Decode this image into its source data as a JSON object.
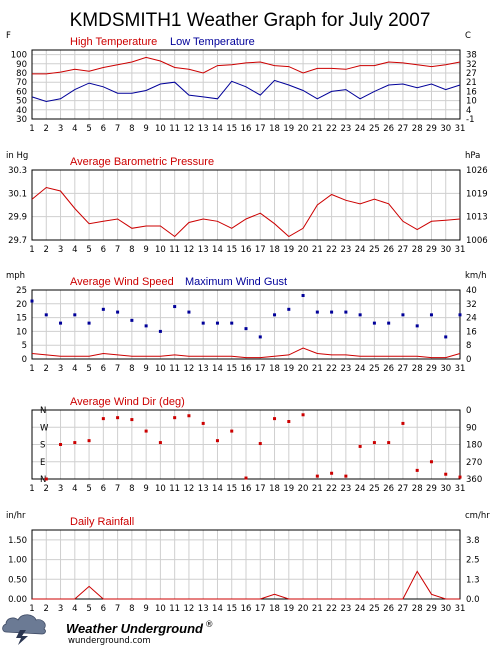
{
  "page": {
    "title": "KMDSMITH1 Weather Graph for July 2007"
  },
  "colors": {
    "red": "#cc0000",
    "blue": "#000099",
    "grid": "#cfcfcf"
  },
  "days": [
    1,
    2,
    3,
    4,
    5,
    6,
    7,
    8,
    9,
    10,
    11,
    12,
    13,
    14,
    15,
    16,
    17,
    18,
    19,
    20,
    21,
    22,
    23,
    24,
    25,
    26,
    27,
    28,
    29,
    30,
    31
  ],
  "chart_data": [
    {
      "type": "line",
      "title": "",
      "left_unit": "F",
      "right_unit": "C",
      "ylim": [
        30,
        105
      ],
      "left_ticks": [
        "30",
        "40",
        "50",
        "60",
        "70",
        "80",
        "90",
        "100"
      ],
      "left_tick_values": [
        30,
        40,
        50,
        60,
        70,
        80,
        90,
        100
      ],
      "right_ticks": [
        "-1",
        "4",
        "10",
        "16",
        "21",
        "27",
        "32",
        "38"
      ],
      "series": [
        {
          "name": "High Temperature",
          "color": "#cc0000",
          "values": [
            79,
            79,
            81,
            84,
            82,
            86,
            89,
            92,
            97,
            93,
            86,
            84,
            80,
            88,
            89,
            91,
            92,
            88,
            87,
            80,
            85,
            85,
            84,
            88,
            88,
            92,
            91,
            89,
            87,
            89,
            92
          ]
        },
        {
          "name": "Low Temperature",
          "color": "#000099",
          "values": [
            54,
            49,
            52,
            62,
            69,
            65,
            58,
            58,
            61,
            68,
            70,
            56,
            54,
            52,
            71,
            65,
            56,
            72,
            67,
            61,
            52,
            60,
            62,
            52,
            60,
            67,
            68,
            64,
            68,
            62,
            67
          ]
        }
      ]
    },
    {
      "type": "line",
      "title": "",
      "left_unit": "in Hg",
      "right_unit": "hPa",
      "ylim": [
        29.7,
        30.3
      ],
      "left_ticks": [
        "29.7",
        "29.9",
        "30.1",
        "30.3"
      ],
      "left_tick_values": [
        29.7,
        29.9,
        30.1,
        30.3
      ],
      "right_ticks": [
        "1006",
        "1013",
        "1019",
        "1026"
      ],
      "series": [
        {
          "name": "Average Barometric Pressure",
          "color": "#cc0000",
          "values": [
            30.05,
            30.15,
            30.12,
            29.97,
            29.84,
            29.86,
            29.88,
            29.8,
            29.82,
            29.82,
            29.73,
            29.85,
            29.88,
            29.86,
            29.8,
            29.88,
            29.93,
            29.84,
            29.73,
            29.8,
            30.0,
            30.09,
            30.04,
            30.01,
            30.05,
            30.01,
            29.86,
            29.79,
            29.86,
            29.87,
            29.88
          ]
        }
      ]
    },
    {
      "type": "line",
      "title": "",
      "left_unit": "mph",
      "right_unit": "km/h",
      "ylim": [
        0,
        25
      ],
      "left_ticks": [
        "0",
        "5",
        "10",
        "15",
        "20",
        "25"
      ],
      "left_tick_values": [
        0,
        5,
        10,
        15,
        20,
        25
      ],
      "right_ticks": [
        "0",
        "8",
        "16",
        "24",
        "32",
        "40"
      ],
      "series": [
        {
          "name": "Average Wind Speed",
          "color": "#cc0000",
          "values": [
            2,
            1.5,
            1,
            1,
            1,
            2,
            1.5,
            1,
            1,
            1,
            1.5,
            1,
            1,
            1,
            1,
            0.5,
            0.5,
            1,
            1.5,
            4,
            2,
            1.5,
            1.5,
            1,
            1,
            1,
            1,
            1,
            0.5,
            0.5,
            2
          ]
        },
        {
          "name": "Maximum Wind Gust",
          "color": "#000099",
          "values": [
            21,
            16,
            13,
            16,
            13,
            18,
            17,
            14,
            12,
            10,
            19,
            17,
            13,
            13,
            13,
            11,
            8,
            16,
            18,
            23,
            17,
            17,
            17,
            16,
            13,
            13,
            16,
            12,
            16,
            8,
            16
          ]
        }
      ]
    },
    {
      "type": "scatter",
      "title": "",
      "right_unit": "",
      "ylim": [
        0,
        360
      ],
      "left_ticks": [
        "N",
        "W",
        "S",
        "E",
        "N"
      ],
      "left_tick_values": [
        360,
        270,
        180,
        90,
        0
      ],
      "right_ticks": [
        "0",
        "90",
        "180",
        "270",
        "360"
      ],
      "series": [
        {
          "name": "Average Wind Dir (deg)",
          "color": "#cc0000",
          "values": [
            null,
            0,
            180,
            190,
            200,
            315,
            320,
            310,
            250,
            190,
            320,
            330,
            290,
            200,
            250,
            5,
            185,
            315,
            300,
            335,
            15,
            30,
            15,
            170,
            190,
            190,
            290,
            45,
            90,
            25,
            10
          ]
        }
      ]
    },
    {
      "type": "line",
      "title": "",
      "left_unit": "in/hr",
      "right_unit": "cm/hr",
      "ylim": [
        0,
        1.75
      ],
      "left_ticks": [
        "0.00",
        "0.50",
        "1.00",
        "1.50"
      ],
      "left_tick_values": [
        0,
        0.5,
        1,
        1.5
      ],
      "right_ticks": [
        "0.0",
        "1.3",
        "2.5",
        "3.8"
      ],
      "series": [
        {
          "name": "Daily Rainfall",
          "color": "#cc0000",
          "values": [
            0,
            0,
            0,
            0,
            0.32,
            0,
            0,
            0,
            0,
            0,
            0,
            0,
            0,
            0,
            0,
            0,
            0,
            0.12,
            0,
            0,
            0,
            0,
            0,
            0,
            0,
            0,
            0,
            0.7,
            0.12,
            0,
            0
          ]
        }
      ]
    }
  ],
  "logo": {
    "brand": "Weather Underground",
    "mark": "®",
    "site": "wunderground.com"
  }
}
